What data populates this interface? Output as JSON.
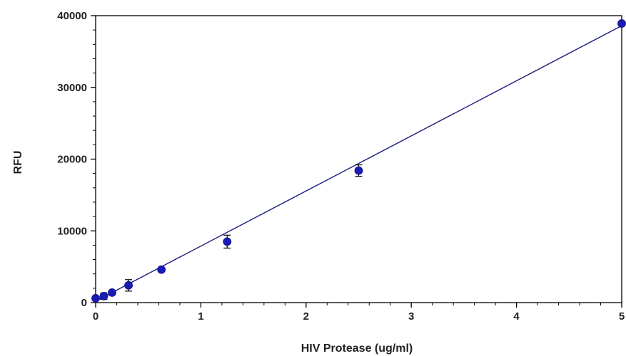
{
  "chart_data": {
    "type": "scatter",
    "xlabel": "HIV Protease (ug/ml)",
    "ylabel": "RFU",
    "xlim": [
      0,
      5
    ],
    "ylim": [
      0,
      40000
    ],
    "x_ticks": [
      0,
      1,
      2,
      3,
      4,
      5
    ],
    "y_ticks": [
      0,
      10000,
      20000,
      30000,
      40000
    ],
    "grid": false,
    "legend": "none",
    "marker_color": "#1a1ab4",
    "line_color": "#1c1c80",
    "points": [
      {
        "x": 0.0,
        "y": 600,
        "err": 150
      },
      {
        "x": 0.078,
        "y": 900,
        "err": 450
      },
      {
        "x": 0.156,
        "y": 1400,
        "err": 200
      },
      {
        "x": 0.3125,
        "y": 2400,
        "err": 800
      },
      {
        "x": 0.625,
        "y": 4600,
        "err": 250
      },
      {
        "x": 1.25,
        "y": 8500,
        "err": 900
      },
      {
        "x": 2.5,
        "y": 18400,
        "err": 800
      },
      {
        "x": 5.0,
        "y": 38900,
        "err": 300
      }
    ],
    "fit_line": {
      "x": [
        0,
        5
      ],
      "y": [
        200,
        38600
      ]
    }
  }
}
